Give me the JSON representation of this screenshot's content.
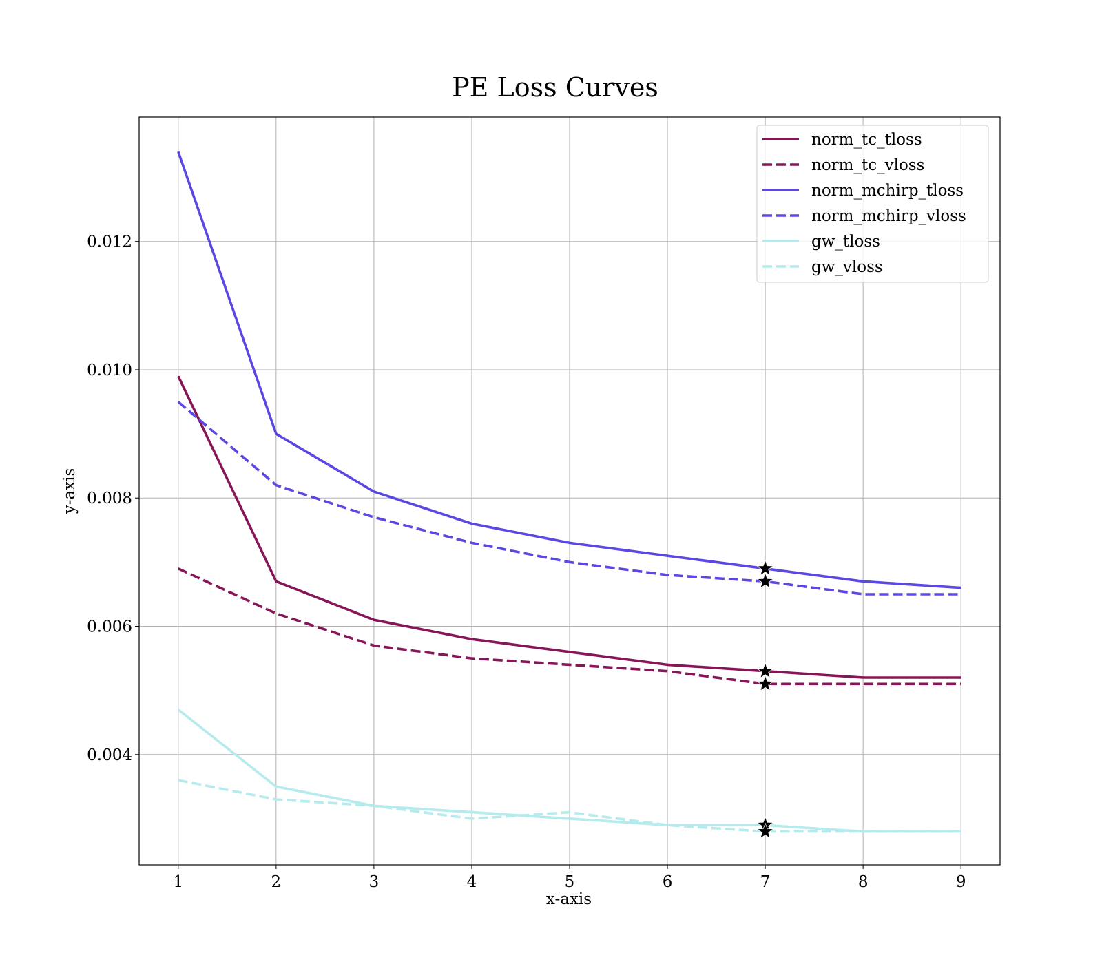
{
  "chart_data": {
    "type": "line",
    "title": "PE Loss Curves",
    "xlabel": "x-axis",
    "ylabel": "y-axis",
    "x": [
      1,
      2,
      3,
      4,
      5,
      6,
      7,
      8,
      9
    ],
    "xlim": [
      0.6,
      9.4
    ],
    "ylim": [
      0.00228,
      0.01394
    ],
    "xticks": [
      "1",
      "2",
      "3",
      "4",
      "5",
      "6",
      "7",
      "8",
      "9"
    ],
    "yticks": [
      "0.004",
      "0.006",
      "0.008",
      "0.010",
      "0.012"
    ],
    "grid": true,
    "legend_position": "top-right",
    "series": [
      {
        "name": "norm_tc_tloss",
        "color": "#861657",
        "style": "solid",
        "values": [
          0.0099,
          0.0067,
          0.0061,
          0.0058,
          0.0056,
          0.0054,
          0.0053,
          0.0052,
          0.0052
        ],
        "marker": {
          "x": 7,
          "y": 0.0053
        }
      },
      {
        "name": "norm_tc_vloss",
        "color": "#861657",
        "style": "dashed",
        "values": [
          0.0069,
          0.0062,
          0.0057,
          0.0055,
          0.0054,
          0.0053,
          0.0051,
          0.0051,
          0.0051
        ],
        "marker": {
          "x": 7,
          "y": 0.0051
        }
      },
      {
        "name": "norm_mchirp_tloss",
        "color": "#5b48e3",
        "style": "solid",
        "values": [
          0.0134,
          0.009,
          0.0081,
          0.0076,
          0.0073,
          0.0071,
          0.0069,
          0.0067,
          0.0066
        ],
        "marker": {
          "x": 7,
          "y": 0.0069
        }
      },
      {
        "name": "norm_mchirp_vloss",
        "color": "#5b48e3",
        "style": "dashed",
        "values": [
          0.0095,
          0.0082,
          0.0077,
          0.0073,
          0.007,
          0.0068,
          0.0067,
          0.0065,
          0.0065
        ],
        "marker": {
          "x": 7,
          "y": 0.0067
        }
      },
      {
        "name": "gw_tloss",
        "color": "#b6ebee",
        "style": "solid",
        "values": [
          0.0047,
          0.0035,
          0.0032,
          0.0031,
          0.003,
          0.0029,
          0.0029,
          0.0028,
          0.0028
        ],
        "marker": {
          "x": 7,
          "y": 0.0029
        }
      },
      {
        "name": "gw_vloss",
        "color": "#b6ebee",
        "style": "dashed",
        "values": [
          0.0036,
          0.0033,
          0.0032,
          0.003,
          0.0031,
          0.0029,
          0.0028,
          0.0028,
          0.0028
        ],
        "marker": {
          "x": 7,
          "y": 0.0028
        }
      }
    ]
  }
}
